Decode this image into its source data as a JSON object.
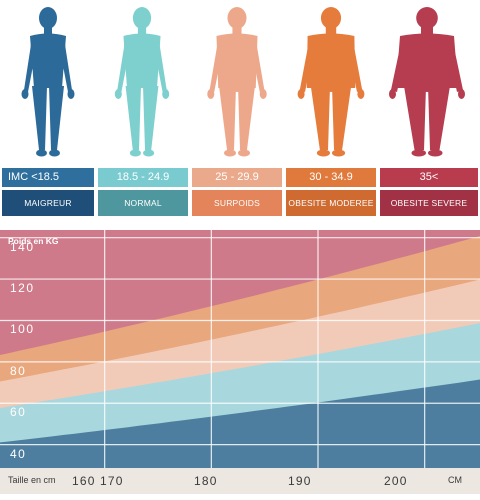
{
  "categories": [
    {
      "range": "IMC  <18.5",
      "name": "MAIGREUR",
      "color_top": "#2f6f9e",
      "color_bottom": "#1f4f78",
      "figure_color": "#2c6a99"
    },
    {
      "range": "18.5 - 24.9",
      "name": "NORMAL",
      "color_top": "#79cbd0",
      "color_bottom": "#4e979e",
      "figure_color": "#7ed0cf"
    },
    {
      "range": "25  -  29.9",
      "name": "SURPOIDS",
      "color_top": "#eba98c",
      "color_bottom": "#e3845a",
      "figure_color": "#eda88b"
    },
    {
      "range": "30  -  34.9",
      "name": "OBESITE MODEREE",
      "color_top": "#e07a3c",
      "color_bottom": "#cf6a30",
      "figure_color": "#e57c3c"
    },
    {
      "range": "35<",
      "name": "OBESITE SEVERE",
      "color_top": "#b83b4e",
      "color_bottom": "#a13145",
      "figure_color": "#b63c50"
    }
  ],
  "chart_data": {
    "type": "area",
    "ylabel": "Poids en KG",
    "xlabel": "Taille en cm",
    "x_unit": "CM",
    "x_ticks": [
      160,
      170,
      180,
      190,
      200
    ],
    "y_ticks": [
      40,
      60,
      80,
      100,
      120,
      140
    ],
    "xlim": [
      160,
      205
    ],
    "ylim": [
      35,
      150
    ],
    "grid": true,
    "bmi_boundaries": [
      18.5,
      25,
      30,
      35
    ],
    "bands": [
      {
        "name": "MAIGREUR",
        "color": "#4d7e9f"
      },
      {
        "name": "NORMAL",
        "color": "#a8d7dd"
      },
      {
        "name": "SURPOIDS",
        "color": "#f2cbb8"
      },
      {
        "name": "OBESITE MODEREE",
        "color": "#e9a77e"
      },
      {
        "name": "OBESITE SEVERE",
        "color": "#cf7a8b"
      }
    ]
  }
}
